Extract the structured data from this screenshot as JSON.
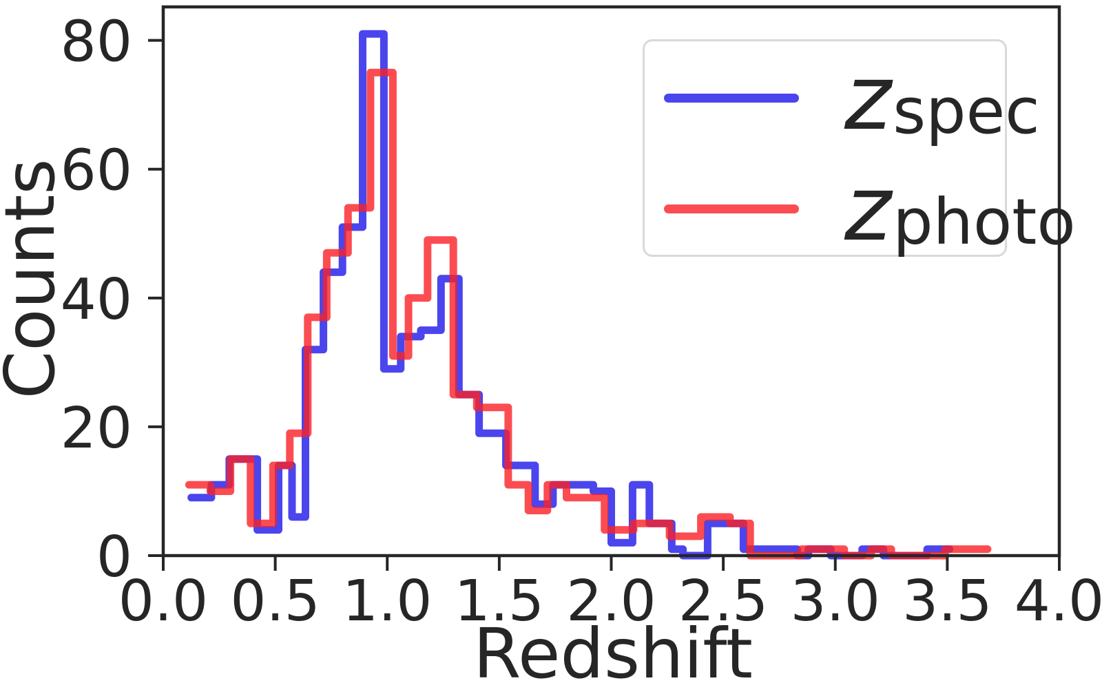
{
  "axes": {
    "xlabel": "Redshift",
    "ylabel": "Counts",
    "spine_color": "#262626",
    "tick_color": "#262626",
    "text_color": "#262626",
    "background": "#ffffff"
  },
  "legend": {
    "symbol": "z",
    "items": [
      {
        "sub": "spec",
        "color": "rgba(30,22,232,0.8)"
      },
      {
        "sub": "photo",
        "color": "rgba(250,32,37,0.8)"
      }
    ],
    "border_color": "#d9d9d9",
    "position": "upper right"
  },
  "chart_data": {
    "type": "histogram-step",
    "title": "",
    "xlabel": "Redshift",
    "ylabel": "Counts",
    "xlim": [
      0.0,
      4.0
    ],
    "ylim": [
      0,
      85.2
    ],
    "grid": false,
    "legend_position": "upper right",
    "xticks": [
      {
        "value": 0.0,
        "label": "0.0"
      },
      {
        "value": 0.5,
        "label": "0.5"
      },
      {
        "value": 1.0,
        "label": "1.0"
      },
      {
        "value": 1.5,
        "label": "1.5"
      },
      {
        "value": 2.0,
        "label": "2.0"
      },
      {
        "value": 2.5,
        "label": "2.5"
      },
      {
        "value": 3.0,
        "label": "3.0"
      },
      {
        "value": 3.5,
        "label": "3.5"
      },
      {
        "value": 4.0,
        "label": "4.0"
      }
    ],
    "yticks": [
      {
        "value": 0,
        "label": "0"
      },
      {
        "value": 20,
        "label": "20"
      },
      {
        "value": 40,
        "label": "40"
      },
      {
        "value": 60,
        "label": "60"
      },
      {
        "value": 80,
        "label": "80"
      }
    ],
    "series": [
      {
        "name": "z_spec",
        "symbol": "z",
        "sub": "spec",
        "color": "rgba(30,22,232,0.8)",
        "line_width": 11,
        "end": 3.51,
        "steps": [
          [
            0.125,
            9
          ],
          [
            0.215,
            11
          ],
          [
            0.295,
            15
          ],
          [
            0.42,
            4
          ],
          [
            0.515,
            14
          ],
          [
            0.575,
            6
          ],
          [
            0.635,
            32
          ],
          [
            0.715,
            44
          ],
          [
            0.8,
            51
          ],
          [
            0.89,
            81
          ],
          [
            0.985,
            29
          ],
          [
            1.06,
            34
          ],
          [
            1.15,
            35
          ],
          [
            1.24,
            43
          ],
          [
            1.32,
            25
          ],
          [
            1.41,
            19
          ],
          [
            1.53,
            14
          ],
          [
            1.66,
            8
          ],
          [
            1.74,
            11
          ],
          [
            1.92,
            10
          ],
          [
            2.0,
            2
          ],
          [
            2.095,
            11
          ],
          [
            2.17,
            5
          ],
          [
            2.27,
            1
          ],
          [
            2.32,
            0
          ],
          [
            2.43,
            5
          ],
          [
            2.59,
            1
          ],
          [
            2.83,
            0
          ],
          [
            2.88,
            1
          ],
          [
            2.98,
            0
          ],
          [
            3.12,
            1
          ],
          [
            3.215,
            0
          ],
          [
            3.41,
            1
          ]
        ]
      },
      {
        "name": "z_photo",
        "symbol": "z",
        "sub": "photo",
        "color": "rgba(250,32,37,0.8)",
        "line_width": 11,
        "end": 3.68,
        "steps": [
          [
            0.115,
            11
          ],
          [
            0.21,
            10
          ],
          [
            0.3,
            15
          ],
          [
            0.39,
            5
          ],
          [
            0.49,
            14
          ],
          [
            0.565,
            19
          ],
          [
            0.645,
            37
          ],
          [
            0.73,
            47
          ],
          [
            0.825,
            54
          ],
          [
            0.925,
            75
          ],
          [
            1.025,
            31
          ],
          [
            1.095,
            40
          ],
          [
            1.18,
            49
          ],
          [
            1.295,
            25
          ],
          [
            1.4,
            23
          ],
          [
            1.54,
            11
          ],
          [
            1.63,
            7
          ],
          [
            1.715,
            11
          ],
          [
            1.8,
            9
          ],
          [
            1.97,
            4
          ],
          [
            2.1,
            5
          ],
          [
            2.26,
            3
          ],
          [
            2.4,
            6
          ],
          [
            2.53,
            5
          ],
          [
            2.62,
            0
          ],
          [
            2.85,
            1
          ],
          [
            3.04,
            0
          ],
          [
            3.16,
            1
          ],
          [
            3.25,
            0
          ],
          [
            3.49,
            1
          ]
        ]
      }
    ]
  }
}
